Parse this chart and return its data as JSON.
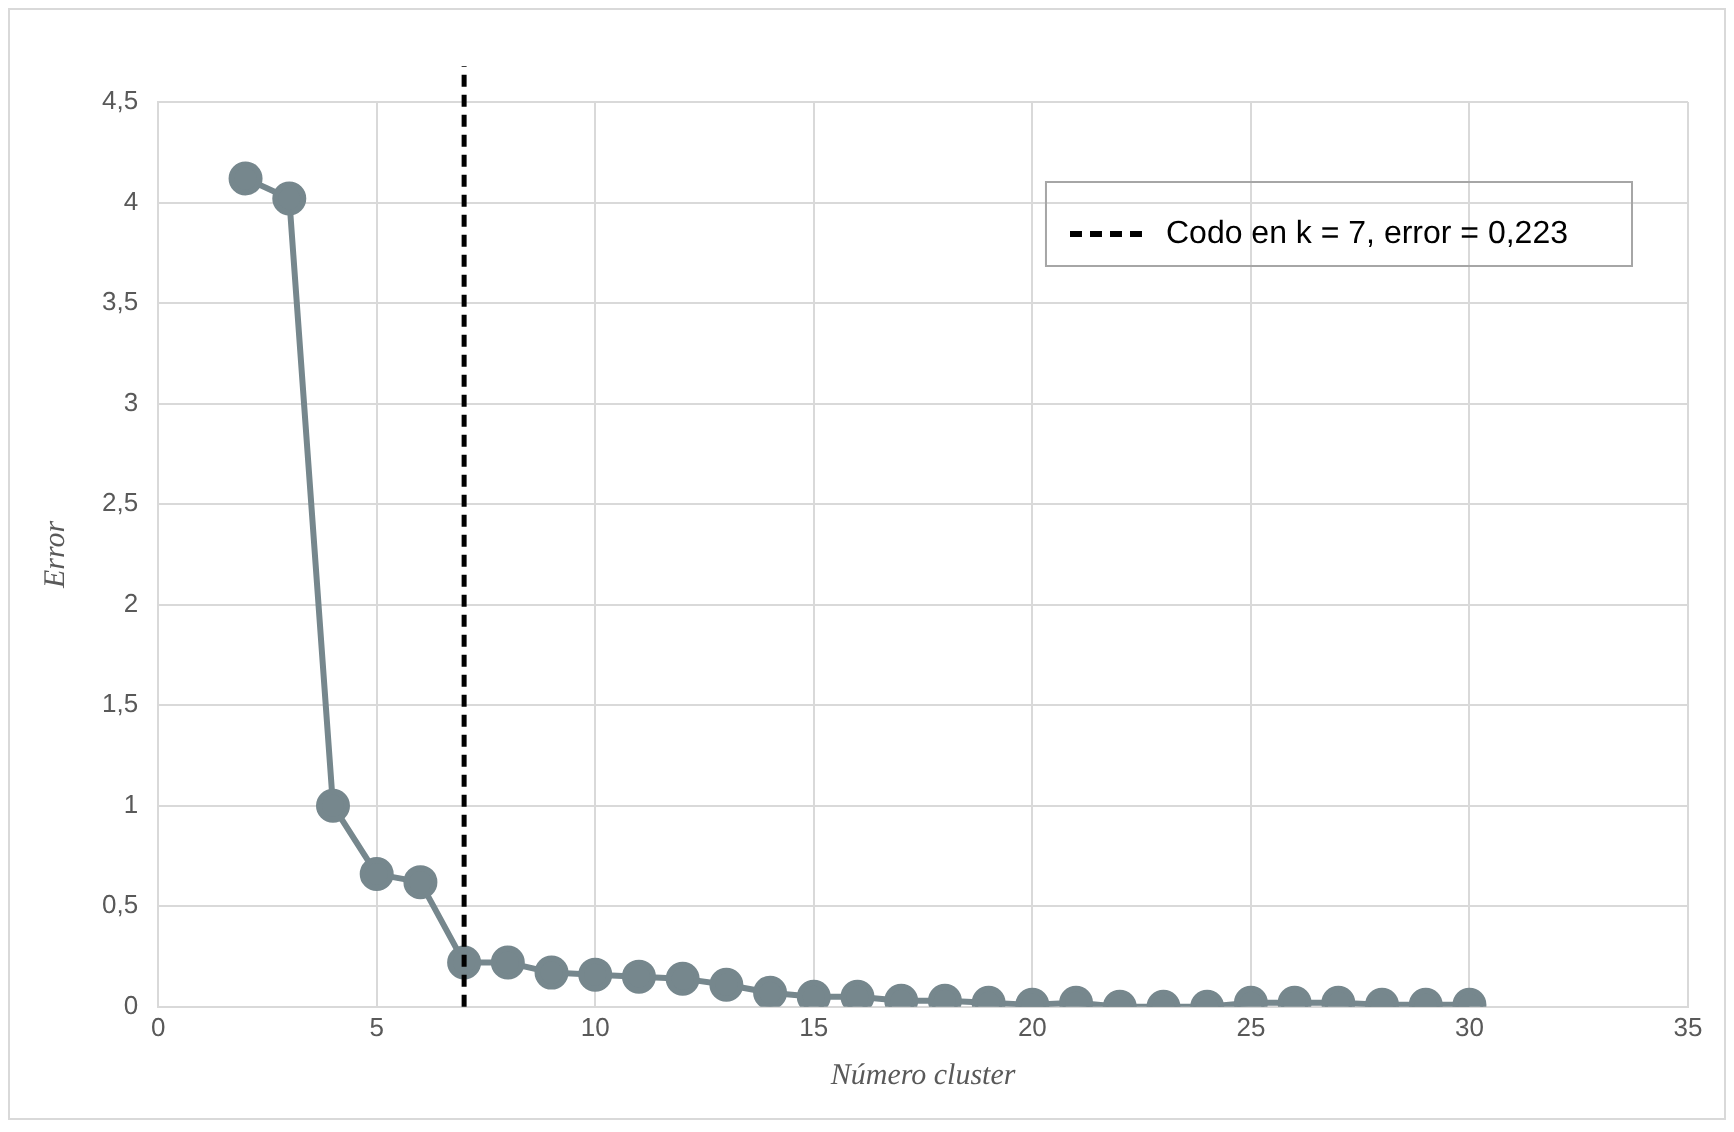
{
  "chart_data": {
    "type": "line",
    "xlabel": "Número cluster",
    "ylabel": "Error",
    "x": [
      2,
      3,
      4,
      5,
      6,
      7,
      8,
      9,
      10,
      11,
      12,
      13,
      14,
      15,
      16,
      17,
      18,
      19,
      20,
      21,
      22,
      23,
      24,
      25,
      26,
      27,
      28,
      29,
      30
    ],
    "series": [
      {
        "color": "#76878d",
        "values": [
          4.12,
          4.02,
          1.0,
          0.66,
          0.62,
          0.22,
          0.22,
          0.17,
          0.16,
          0.15,
          0.14,
          0.11,
          0.07,
          0.05,
          0.05,
          0.03,
          0.03,
          0.02,
          0.01,
          0.02,
          0.0,
          0.0,
          0.0,
          0.02,
          0.02,
          0.02,
          0.01,
          0.01,
          0.01
        ]
      }
    ],
    "xlim": [
      0,
      35
    ],
    "xticks": [
      0,
      5,
      10,
      15,
      20,
      25,
      30,
      35
    ],
    "ylim": [
      0,
      4.5
    ],
    "yticks": [
      0,
      {
        "value": 0.5,
        "label": "0,5"
      },
      1,
      {
        "value": 1.5,
        "label": "1,5"
      },
      2,
      {
        "value": 2.5,
        "label": "2,5"
      },
      3,
      {
        "value": 3.5,
        "label": "3,5"
      },
      4,
      {
        "value": 4.5,
        "label": "4,5"
      }
    ],
    "ref_lines": [
      {
        "axis": "x",
        "value": 7,
        "label": "Codo en k = 7, error = 0,223",
        "color": "#000000",
        "line_style": "dashed"
      }
    ],
    "grid": true,
    "legend": "top right",
    "marker": "circle",
    "line_style": "solid"
  }
}
